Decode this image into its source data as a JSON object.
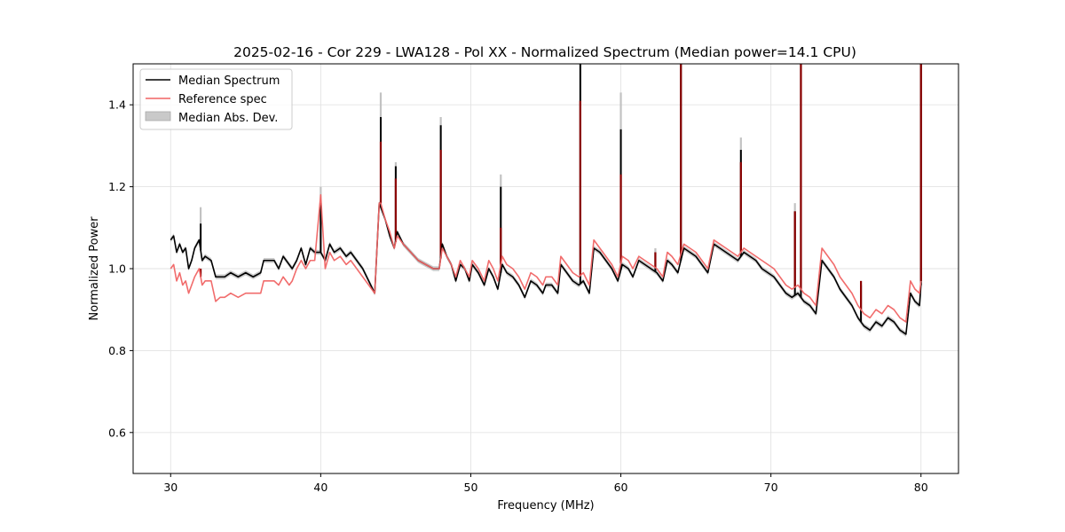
{
  "chart_data": {
    "type": "line",
    "title": "2025-02-16 - Cor 229 - LWA128 - Pol XX - Normalized Spectrum (Median power=14.1 CPU)",
    "xlabel": "Frequency (MHz)",
    "ylabel": "Normalized Power",
    "xlim": [
      27.5,
      82.5
    ],
    "ylim": [
      0.5,
      1.5
    ],
    "xticks": [
      30,
      40,
      50,
      60,
      70,
      80
    ],
    "yticks": [
      0.6,
      0.8,
      1.0,
      1.2,
      1.4
    ],
    "xtick_labels": [
      "30",
      "40",
      "50",
      "60",
      "70",
      "80"
    ],
    "ytick_labels": [
      "0.6",
      "0.8",
      "1.0",
      "1.2",
      "1.4"
    ],
    "grid": true,
    "legend": {
      "position": "top-left",
      "entries": [
        {
          "label": "Median Spectrum",
          "style": "line",
          "color": "#000000"
        },
        {
          "label": "Reference spec",
          "style": "line",
          "color": "#f06464"
        },
        {
          "label": "Median Abs. Dev.",
          "style": "patch",
          "color": "#bdbdbd"
        }
      ]
    },
    "series": [
      {
        "name": "Median Spectrum",
        "color": "#000000",
        "x": [
          30.0,
          30.2,
          30.4,
          30.6,
          30.8,
          31.0,
          31.2,
          31.4,
          31.6,
          31.9,
          32.1,
          32.3,
          32.7,
          33.0,
          33.3,
          33.6,
          34.0,
          34.5,
          35.0,
          35.5,
          36.0,
          36.2,
          36.5,
          36.9,
          37.2,
          37.5,
          37.9,
          38.1,
          38.4,
          38.7,
          39.0,
          39.3,
          39.6,
          40.0,
          40.3,
          40.6,
          40.9,
          41.3,
          41.7,
          42.0,
          42.4,
          42.8,
          43.2,
          43.6,
          43.9,
          44.0,
          44.3,
          44.6,
          44.9,
          45.1,
          45.5,
          46.0,
          46.5,
          47.0,
          47.5,
          47.9,
          48.1,
          48.4,
          48.7,
          49.0,
          49.3,
          49.6,
          49.9,
          50.1,
          50.5,
          50.9,
          51.2,
          51.5,
          51.8,
          52.1,
          52.4,
          52.8,
          53.2,
          53.6,
          54.0,
          54.4,
          54.8,
          55.0,
          55.4,
          55.8,
          56.0,
          56.4,
          56.8,
          57.2,
          57.5,
          57.9,
          58.2,
          58.6,
          59.0,
          59.4,
          59.8,
          60.1,
          60.5,
          60.8,
          61.2,
          61.6,
          62.0,
          62.4,
          62.8,
          63.1,
          63.4,
          63.8,
          64.2,
          64.6,
          65.0,
          65.4,
          65.8,
          66.2,
          66.6,
          67.0,
          67.4,
          67.8,
          68.2,
          68.6,
          69.0,
          69.4,
          69.8,
          70.2,
          70.6,
          71.0,
          71.4,
          71.8,
          72.2,
          72.6,
          73.0,
          73.4,
          73.8,
          74.2,
          74.6,
          75.0,
          75.4,
          75.8,
          76.2,
          76.6,
          77.0,
          77.4,
          77.8,
          78.2,
          78.6,
          79.0,
          79.3,
          79.6,
          79.9,
          80.0
        ],
        "y": [
          1.07,
          1.08,
          1.04,
          1.06,
          1.04,
          1.05,
          1.0,
          1.02,
          1.05,
          1.07,
          1.02,
          1.03,
          1.02,
          0.98,
          0.98,
          0.98,
          0.99,
          0.98,
          0.99,
          0.98,
          0.99,
          1.02,
          1.02,
          1.02,
          1.0,
          1.03,
          1.01,
          1.0,
          1.02,
          1.05,
          1.01,
          1.05,
          1.04,
          1.04,
          1.02,
          1.06,
          1.04,
          1.05,
          1.03,
          1.04,
          1.02,
          1.0,
          0.97,
          0.94,
          1.16,
          1.15,
          1.12,
          1.08,
          1.05,
          1.09,
          1.06,
          1.04,
          1.02,
          1.01,
          1.0,
          1.0,
          1.06,
          1.03,
          1.01,
          0.97,
          1.01,
          1.0,
          0.97,
          1.01,
          0.99,
          0.96,
          1.0,
          0.98,
          0.95,
          1.01,
          0.99,
          0.98,
          0.96,
          0.93,
          0.97,
          0.96,
          0.94,
          0.96,
          0.96,
          0.94,
          1.01,
          0.99,
          0.97,
          0.96,
          0.97,
          0.94,
          1.05,
          1.04,
          1.02,
          1.0,
          0.97,
          1.01,
          1.0,
          0.98,
          1.02,
          1.01,
          1.0,
          0.99,
          0.97,
          1.02,
          1.01,
          0.99,
          1.05,
          1.04,
          1.03,
          1.01,
          0.99,
          1.06,
          1.05,
          1.04,
          1.03,
          1.02,
          1.04,
          1.03,
          1.02,
          1.0,
          0.99,
          0.98,
          0.96,
          0.94,
          0.93,
          0.94,
          0.92,
          0.91,
          0.89,
          1.02,
          1.0,
          0.98,
          0.95,
          0.93,
          0.91,
          0.88,
          0.86,
          0.85,
          0.87,
          0.86,
          0.88,
          0.87,
          0.85,
          0.84,
          0.94,
          0.92,
          0.91,
          0.96
        ]
      },
      {
        "name": "Reference spec",
        "color": "#f06464",
        "x": [
          30.0,
          30.2,
          30.4,
          30.6,
          30.8,
          31.0,
          31.2,
          31.4,
          31.6,
          31.9,
          32.1,
          32.3,
          32.7,
          33.0,
          33.3,
          33.6,
          34.0,
          34.5,
          35.0,
          35.5,
          36.0,
          36.2,
          36.5,
          36.9,
          37.2,
          37.5,
          37.9,
          38.1,
          38.4,
          38.7,
          39.0,
          39.3,
          39.6,
          40.0,
          40.3,
          40.6,
          40.9,
          41.3,
          41.7,
          42.0,
          42.4,
          42.8,
          43.2,
          43.6,
          43.9,
          44.0,
          44.3,
          44.6,
          44.9,
          45.1,
          45.5,
          46.0,
          46.5,
          47.0,
          47.5,
          47.9,
          48.1,
          48.4,
          48.7,
          49.0,
          49.3,
          49.6,
          49.9,
          50.1,
          50.5,
          50.9,
          51.2,
          51.5,
          51.8,
          52.1,
          52.4,
          52.8,
          53.2,
          53.6,
          54.0,
          54.4,
          54.8,
          55.0,
          55.4,
          55.8,
          56.0,
          56.4,
          56.8,
          57.2,
          57.5,
          57.9,
          58.2,
          58.6,
          59.0,
          59.4,
          59.8,
          60.1,
          60.5,
          60.8,
          61.2,
          61.6,
          62.0,
          62.4,
          62.8,
          63.1,
          63.4,
          63.8,
          64.2,
          64.6,
          65.0,
          65.4,
          65.8,
          66.2,
          66.6,
          67.0,
          67.4,
          67.8,
          68.2,
          68.6,
          69.0,
          69.4,
          69.8,
          70.2,
          70.6,
          71.0,
          71.4,
          71.8,
          72.2,
          72.6,
          73.0,
          73.4,
          73.8,
          74.2,
          74.6,
          75.0,
          75.4,
          75.8,
          76.2,
          76.6,
          77.0,
          77.4,
          77.8,
          78.2,
          78.6,
          79.0,
          79.3,
          79.6,
          79.9,
          80.0
        ],
        "y": [
          1.0,
          1.01,
          0.97,
          0.99,
          0.96,
          0.97,
          0.94,
          0.96,
          0.98,
          1.0,
          0.96,
          0.97,
          0.97,
          0.92,
          0.93,
          0.93,
          0.94,
          0.93,
          0.94,
          0.94,
          0.94,
          0.97,
          0.97,
          0.97,
          0.96,
          0.98,
          0.96,
          0.97,
          1.0,
          1.02,
          1.0,
          1.02,
          1.02,
          1.18,
          1.0,
          1.04,
          1.02,
          1.03,
          1.01,
          1.02,
          1.0,
          0.98,
          0.96,
          0.94,
          1.16,
          1.16,
          1.12,
          1.09,
          1.05,
          1.08,
          1.06,
          1.04,
          1.02,
          1.01,
          1.0,
          1.0,
          1.05,
          1.03,
          1.01,
          0.98,
          1.02,
          1.0,
          0.98,
          1.02,
          1.0,
          0.97,
          1.02,
          1.0,
          0.97,
          1.03,
          1.01,
          1.0,
          0.98,
          0.95,
          0.99,
          0.98,
          0.96,
          0.98,
          0.98,
          0.96,
          1.03,
          1.01,
          0.99,
          0.98,
          0.99,
          0.96,
          1.07,
          1.05,
          1.03,
          1.01,
          0.98,
          1.03,
          1.02,
          1.0,
          1.03,
          1.02,
          1.01,
          1.0,
          0.98,
          1.04,
          1.03,
          1.01,
          1.06,
          1.05,
          1.04,
          1.02,
          1.0,
          1.07,
          1.06,
          1.05,
          1.04,
          1.03,
          1.05,
          1.04,
          1.03,
          1.02,
          1.01,
          1.0,
          0.98,
          0.96,
          0.95,
          0.96,
          0.94,
          0.93,
          0.91,
          1.05,
          1.03,
          1.01,
          0.98,
          0.96,
          0.94,
          0.91,
          0.89,
          0.88,
          0.9,
          0.89,
          0.91,
          0.9,
          0.88,
          0.87,
          0.97,
          0.95,
          0.94,
          0.97
        ]
      }
    ],
    "spikes": [
      {
        "x": 32.0,
        "median": 1.11,
        "reference": 1.0,
        "mad": 1.15
      },
      {
        "x": 40.0,
        "median": 1.16,
        "reference": 1.18,
        "mad": 1.2
      },
      {
        "x": 44.0,
        "median": 1.37,
        "reference": 1.31,
        "mad": 1.43
      },
      {
        "x": 45.0,
        "median": 1.25,
        "reference": 1.22,
        "mad": 1.26
      },
      {
        "x": 48.0,
        "median": 1.35,
        "reference": 1.29,
        "mad": 1.37
      },
      {
        "x": 52.0,
        "median": 1.2,
        "reference": 1.1,
        "mad": 1.23
      },
      {
        "x": 57.3,
        "median": 1.5,
        "reference": 1.41,
        "mad": 1.5
      },
      {
        "x": 60.0,
        "median": 1.34,
        "reference": 1.23,
        "mad": 1.43
      },
      {
        "x": 62.3,
        "median": 1.04,
        "reference": 1.04,
        "mad": 1.05
      },
      {
        "x": 64.0,
        "median": 1.5,
        "reference": 1.5,
        "mad": 1.5
      },
      {
        "x": 68.0,
        "median": 1.29,
        "reference": 1.26,
        "mad": 1.32
      },
      {
        "x": 71.6,
        "median": 1.14,
        "reference": 1.14,
        "mad": 1.16
      },
      {
        "x": 72.0,
        "median": 1.5,
        "reference": 1.5,
        "mad": 1.5
      },
      {
        "x": 76.0,
        "median": 0.96,
        "reference": 0.97,
        "mad": 0.97
      },
      {
        "x": 80.0,
        "median": 1.5,
        "reference": 1.5,
        "mad": 1.5
      }
    ],
    "mad_band_halfwidth": 0.006
  }
}
